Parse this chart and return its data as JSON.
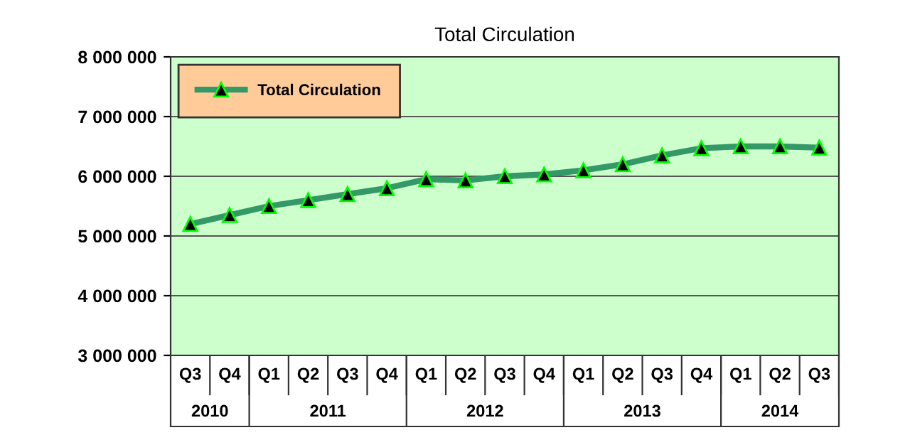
{
  "chart_data": {
    "type": "line",
    "title": "Total Circulation",
    "categories": [
      "Q3",
      "Q4",
      "Q1",
      "Q2",
      "Q3",
      "Q4",
      "Q1",
      "Q2",
      "Q3",
      "Q4",
      "Q1",
      "Q2",
      "Q3",
      "Q4",
      "Q1",
      "Q2",
      "Q3"
    ],
    "annotations": [
      "2010",
      "2011",
      "2012",
      "2013",
      "2014"
    ],
    "series": [
      {
        "name": "Total Circulation",
        "color": "#339966",
        "values": [
          5200000,
          5350000,
          5500000,
          5600000,
          5700000,
          5800000,
          5950000,
          5930000,
          6000000,
          6030000,
          6100000,
          6200000,
          6350000,
          6470000,
          6500000,
          6500000,
          6480000
        ]
      }
    ],
    "ylim": [
      3000000,
      8000000
    ],
    "yticks": [
      {
        "value": 3000000,
        "label": "3 000 000"
      },
      {
        "value": 4000000,
        "label": "4 000 000"
      },
      {
        "value": 5000000,
        "label": "5 000 000"
      },
      {
        "value": 6000000,
        "label": "6 000 000"
      },
      {
        "value": 7000000,
        "label": "7 000 000"
      },
      {
        "value": 8000000,
        "label": "8 000 000"
      }
    ],
    "grid": "y",
    "legend": "top left",
    "marker": "triangle",
    "line_style": "solid"
  }
}
